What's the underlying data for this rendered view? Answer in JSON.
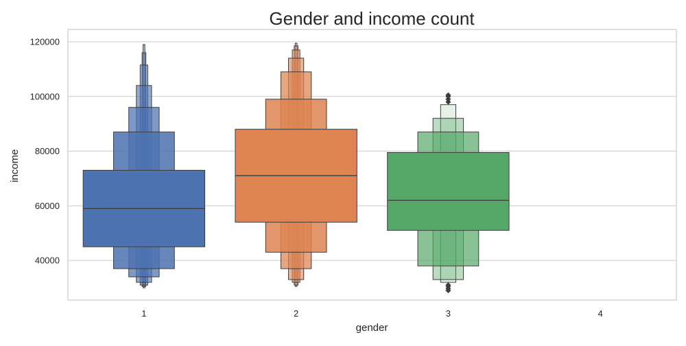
{
  "chart_data": {
    "type": "boxen",
    "title": "Gender and income count",
    "xlabel": "gender",
    "ylabel": "income",
    "categories": [
      "1",
      "2",
      "3",
      "4"
    ],
    "ylim": [
      25500,
      124500
    ],
    "yticks": [
      40000,
      60000,
      80000,
      100000,
      120000
    ],
    "ytick_labels": [
      "40000",
      "60000",
      "80000",
      "100000",
      "120000"
    ],
    "grid": true,
    "colors": {
      "1": "#4c72b0",
      "2": "#dd8452",
      "3": "#55a868",
      "edge": "#3d3d3d",
      "frame": "#cccccc",
      "grid": "#cccccc"
    },
    "series": [
      {
        "category": "1",
        "median": 59000,
        "boxes": [
          {
            "lo": 45000,
            "hi": 73000,
            "width": 0.8,
            "opacity": 1.0
          },
          {
            "lo": 37000,
            "hi": 87000,
            "width": 0.4,
            "opacity": 0.85
          },
          {
            "lo": 34000,
            "hi": 96000,
            "width": 0.2,
            "opacity": 0.72
          },
          {
            "lo": 32000,
            "hi": 104000,
            "width": 0.1,
            "opacity": 0.6
          },
          {
            "lo": 31000,
            "hi": 111500,
            "width": 0.05,
            "opacity": 0.5
          },
          {
            "lo": 30500,
            "hi": 116000,
            "width": 0.025,
            "opacity": 0.45
          },
          {
            "lo": 30000,
            "hi": 119000,
            "width": 0.012,
            "opacity": 0.4
          }
        ],
        "outliers": []
      },
      {
        "category": "2",
        "median": 71000,
        "boxes": [
          {
            "lo": 54000,
            "hi": 88000,
            "width": 0.8,
            "opacity": 1.0
          },
          {
            "lo": 43000,
            "hi": 99000,
            "width": 0.4,
            "opacity": 0.85
          },
          {
            "lo": 37000,
            "hi": 109000,
            "width": 0.2,
            "opacity": 0.72
          },
          {
            "lo": 33000,
            "hi": 114000,
            "width": 0.1,
            "opacity": 0.6
          },
          {
            "lo": 32000,
            "hi": 117000,
            "width": 0.05,
            "opacity": 0.5
          },
          {
            "lo": 31000,
            "hi": 118500,
            "width": 0.025,
            "opacity": 0.45
          },
          {
            "lo": 30500,
            "hi": 119500,
            "width": 0.012,
            "opacity": 0.4
          }
        ],
        "outliers": []
      },
      {
        "category": "3",
        "median": 62000,
        "boxes": [
          {
            "lo": 51000,
            "hi": 79500,
            "width": 0.8,
            "opacity": 1.0
          },
          {
            "lo": 38000,
            "hi": 87000,
            "width": 0.4,
            "opacity": 0.7
          },
          {
            "lo": 33000,
            "hi": 92000,
            "width": 0.2,
            "opacity": 0.4
          },
          {
            "lo": 32000,
            "hi": 97000,
            "width": 0.1,
            "opacity": 0.15
          }
        ],
        "outliers": [
          29000,
          29700,
          30500,
          31000,
          98000,
          99000,
          100000,
          100500
        ]
      }
    ]
  }
}
